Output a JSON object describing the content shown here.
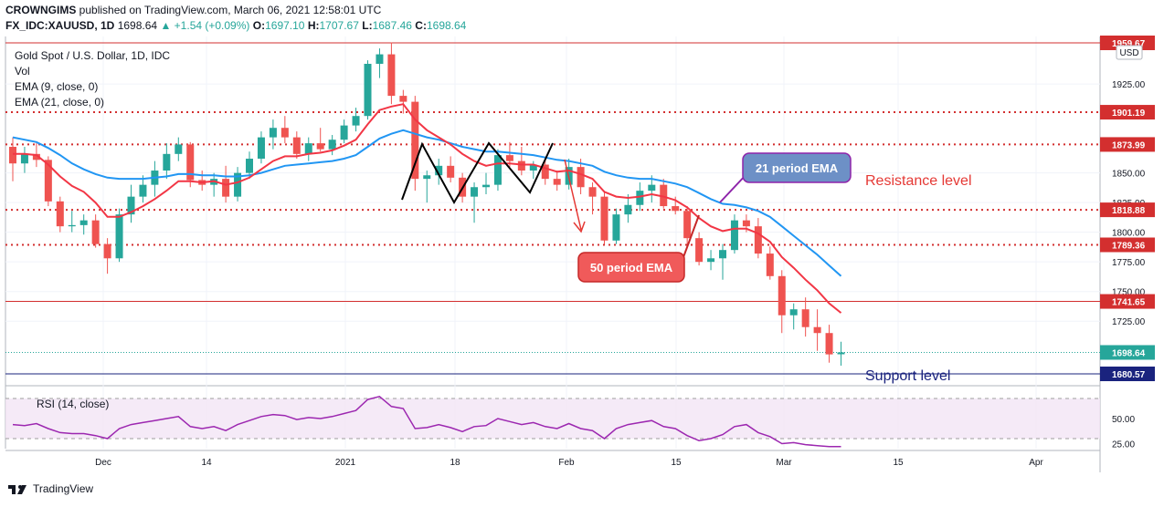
{
  "header": {
    "publisher": "CROWNGIMS",
    "published_text": "published on TradingView.com, March 06, 2021 12:58:01 UTC",
    "symbol": "FX_IDC:XAUUSD, 1D",
    "last": "1698.64",
    "change": "+1.54 (+0.09%)",
    "o_label": "O:",
    "o": "1697.10",
    "h_label": "H:",
    "h": "1707.67",
    "l_label": "L:",
    "l": "1687.46",
    "c_label": "C:",
    "c": "1698.64"
  },
  "legend": {
    "title": "Gold Spot / U.S. Dollar, 1D, IDC",
    "vol": "Vol",
    "ema9": "EMA (9, close, 0)",
    "ema21": "EMA (21, close, 0)"
  },
  "currency": "USD",
  "rsi_label": "RSI (14, close)",
  "footer": {
    "brand": "TradingView"
  },
  "colors": {
    "up": "#26a69a",
    "down": "#ef5350",
    "ema_fast": "#f23645",
    "ema_slow": "#2196f3",
    "rsi": "#9c27b0",
    "resistance": "#d32f2f",
    "support": "#1a237e"
  },
  "chart_data": {
    "type": "candlestick",
    "ylim": [
      1665,
      1965
    ],
    "price_ticks": [
      "1925.00",
      "1850.00",
      "1825.00",
      "1800.00",
      "1775.00",
      "1750.00",
      "1725.00"
    ],
    "x_tick_labels": [
      "Dec",
      "14",
      "2021",
      "18",
      "Feb",
      "15",
      "Mar",
      "15",
      "Apr"
    ],
    "levels": [
      {
        "value": 1959.67,
        "label": "1959.67",
        "style": "solid",
        "color": "#d32f2f"
      },
      {
        "value": 1901.19,
        "label": "1901.19",
        "style": "dotted",
        "color": "#d32f2f"
      },
      {
        "value": 1873.99,
        "label": "1873.99",
        "style": "dotted",
        "color": "#d32f2f"
      },
      {
        "value": 1818.88,
        "label": "1818.88",
        "style": "dotted",
        "color": "#d32f2f"
      },
      {
        "value": 1789.36,
        "label": "1789.36",
        "style": "dotted",
        "color": "#d32f2f"
      },
      {
        "value": 1741.65,
        "label": "1741.65",
        "style": "solid",
        "color": "#d32f2f"
      },
      {
        "value": 1680.57,
        "label": "1680.57",
        "style": "solid",
        "color": "#1a237e"
      }
    ],
    "last_price": {
      "value": 1698.64,
      "label": "1698.64",
      "color": "#26a69a"
    },
    "candles": [
      {
        "o": 1872,
        "h": 1880,
        "l": 1843,
        "c": 1858
      },
      {
        "o": 1858,
        "h": 1872,
        "l": 1850,
        "c": 1866
      },
      {
        "o": 1866,
        "h": 1875,
        "l": 1855,
        "c": 1861
      },
      {
        "o": 1861,
        "h": 1864,
        "l": 1822,
        "c": 1826
      },
      {
        "o": 1826,
        "h": 1830,
        "l": 1800,
        "c": 1805
      },
      {
        "o": 1805,
        "h": 1818,
        "l": 1800,
        "c": 1806
      },
      {
        "o": 1806,
        "h": 1815,
        "l": 1798,
        "c": 1810
      },
      {
        "o": 1810,
        "h": 1815,
        "l": 1787,
        "c": 1790
      },
      {
        "o": 1790,
        "h": 1795,
        "l": 1765,
        "c": 1778
      },
      {
        "o": 1778,
        "h": 1820,
        "l": 1775,
        "c": 1815
      },
      {
        "o": 1815,
        "h": 1840,
        "l": 1808,
        "c": 1830
      },
      {
        "o": 1830,
        "h": 1848,
        "l": 1825,
        "c": 1840
      },
      {
        "o": 1840,
        "h": 1860,
        "l": 1830,
        "c": 1852
      },
      {
        "o": 1852,
        "h": 1875,
        "l": 1845,
        "c": 1866
      },
      {
        "o": 1866,
        "h": 1880,
        "l": 1860,
        "c": 1874
      },
      {
        "o": 1874,
        "h": 1876,
        "l": 1838,
        "c": 1844
      },
      {
        "o": 1844,
        "h": 1852,
        "l": 1835,
        "c": 1840
      },
      {
        "o": 1840,
        "h": 1850,
        "l": 1830,
        "c": 1845
      },
      {
        "o": 1845,
        "h": 1856,
        "l": 1825,
        "c": 1830
      },
      {
        "o": 1830,
        "h": 1855,
        "l": 1826,
        "c": 1850
      },
      {
        "o": 1850,
        "h": 1868,
        "l": 1845,
        "c": 1862
      },
      {
        "o": 1862,
        "h": 1885,
        "l": 1858,
        "c": 1880
      },
      {
        "o": 1880,
        "h": 1895,
        "l": 1870,
        "c": 1888
      },
      {
        "o": 1888,
        "h": 1898,
        "l": 1875,
        "c": 1880
      },
      {
        "o": 1880,
        "h": 1885,
        "l": 1862,
        "c": 1866
      },
      {
        "o": 1866,
        "h": 1880,
        "l": 1860,
        "c": 1875
      },
      {
        "o": 1875,
        "h": 1888,
        "l": 1868,
        "c": 1870
      },
      {
        "o": 1870,
        "h": 1882,
        "l": 1865,
        "c": 1878
      },
      {
        "o": 1878,
        "h": 1895,
        "l": 1875,
        "c": 1890
      },
      {
        "o": 1890,
        "h": 1905,
        "l": 1885,
        "c": 1898
      },
      {
        "o": 1898,
        "h": 1945,
        "l": 1895,
        "c": 1942
      },
      {
        "o": 1942,
        "h": 1955,
        "l": 1930,
        "c": 1950
      },
      {
        "o": 1950,
        "h": 1960,
        "l": 1908,
        "c": 1915
      },
      {
        "o": 1915,
        "h": 1920,
        "l": 1900,
        "c": 1910
      },
      {
        "o": 1910,
        "h": 1915,
        "l": 1835,
        "c": 1845
      },
      {
        "o": 1845,
        "h": 1852,
        "l": 1825,
        "c": 1848
      },
      {
        "o": 1848,
        "h": 1862,
        "l": 1840,
        "c": 1856
      },
      {
        "o": 1856,
        "h": 1864,
        "l": 1842,
        "c": 1846
      },
      {
        "o": 1846,
        "h": 1850,
        "l": 1825,
        "c": 1830
      },
      {
        "o": 1830,
        "h": 1842,
        "l": 1808,
        "c": 1838
      },
      {
        "o": 1838,
        "h": 1850,
        "l": 1832,
        "c": 1840
      },
      {
        "o": 1840,
        "h": 1870,
        "l": 1835,
        "c": 1865
      },
      {
        "o": 1865,
        "h": 1876,
        "l": 1855,
        "c": 1860
      },
      {
        "o": 1860,
        "h": 1872,
        "l": 1848,
        "c": 1852
      },
      {
        "o": 1852,
        "h": 1860,
        "l": 1845,
        "c": 1857
      },
      {
        "o": 1857,
        "h": 1862,
        "l": 1840,
        "c": 1845
      },
      {
        "o": 1845,
        "h": 1852,
        "l": 1835,
        "c": 1840
      },
      {
        "o": 1840,
        "h": 1862,
        "l": 1836,
        "c": 1855
      },
      {
        "o": 1855,
        "h": 1862,
        "l": 1832,
        "c": 1838
      },
      {
        "o": 1838,
        "h": 1842,
        "l": 1815,
        "c": 1830
      },
      {
        "o": 1830,
        "h": 1835,
        "l": 1790,
        "c": 1793
      },
      {
        "o": 1793,
        "h": 1820,
        "l": 1790,
        "c": 1815
      },
      {
        "o": 1815,
        "h": 1832,
        "l": 1808,
        "c": 1823
      },
      {
        "o": 1823,
        "h": 1842,
        "l": 1818,
        "c": 1835
      },
      {
        "o": 1835,
        "h": 1848,
        "l": 1825,
        "c": 1840
      },
      {
        "o": 1840,
        "h": 1845,
        "l": 1820,
        "c": 1822
      },
      {
        "o": 1822,
        "h": 1830,
        "l": 1815,
        "c": 1818
      },
      {
        "o": 1818,
        "h": 1822,
        "l": 1790,
        "c": 1795
      },
      {
        "o": 1795,
        "h": 1800,
        "l": 1772,
        "c": 1775
      },
      {
        "o": 1775,
        "h": 1785,
        "l": 1768,
        "c": 1778
      },
      {
        "o": 1778,
        "h": 1790,
        "l": 1760,
        "c": 1785
      },
      {
        "o": 1785,
        "h": 1815,
        "l": 1782,
        "c": 1810
      },
      {
        "o": 1810,
        "h": 1815,
        "l": 1800,
        "c": 1805
      },
      {
        "o": 1805,
        "h": 1812,
        "l": 1778,
        "c": 1782
      },
      {
        "o": 1782,
        "h": 1788,
        "l": 1760,
        "c": 1763
      },
      {
        "o": 1763,
        "h": 1768,
        "l": 1715,
        "c": 1730
      },
      {
        "o": 1730,
        "h": 1740,
        "l": 1718,
        "c": 1735
      },
      {
        "o": 1735,
        "h": 1745,
        "l": 1712,
        "c": 1720
      },
      {
        "o": 1720,
        "h": 1735,
        "l": 1700,
        "c": 1715
      },
      {
        "o": 1715,
        "h": 1722,
        "l": 1690,
        "c": 1697
      },
      {
        "o": 1697.1,
        "h": 1707.67,
        "l": 1687.46,
        "c": 1698.64
      }
    ],
    "ema_fast": [
      1866,
      1866,
      1865,
      1857,
      1847,
      1839,
      1834,
      1825,
      1813,
      1813,
      1817,
      1822,
      1828,
      1835,
      1843,
      1843,
      1842,
      1843,
      1840,
      1842,
      1846,
      1853,
      1860,
      1864,
      1864,
      1866,
      1867,
      1869,
      1873,
      1878,
      1891,
      1903,
      1906,
      1908,
      1895,
      1886,
      1880,
      1874,
      1866,
      1860,
      1856,
      1858,
      1858,
      1857,
      1857,
      1854,
      1851,
      1852,
      1849,
      1845,
      1834,
      1830,
      1829,
      1830,
      1832,
      1830,
      1827,
      1821,
      1812,
      1805,
      1801,
      1803,
      1803,
      1799,
      1792,
      1779,
      1770,
      1760,
      1751,
      1740,
      1732
    ],
    "ema_slow": [
      1880,
      1878,
      1876,
      1871,
      1865,
      1858,
      1853,
      1849,
      1846,
      1845,
      1845,
      1845,
      1846,
      1847,
      1849,
      1849,
      1848,
      1848,
      1847,
      1847,
      1848,
      1850,
      1853,
      1856,
      1857,
      1858,
      1859,
      1860,
      1862,
      1865,
      1872,
      1879,
      1883,
      1886,
      1883,
      1880,
      1878,
      1875,
      1872,
      1870,
      1868,
      1868,
      1867,
      1866,
      1865,
      1863,
      1861,
      1860,
      1858,
      1856,
      1851,
      1848,
      1846,
      1845,
      1845,
      1843,
      1841,
      1838,
      1833,
      1828,
      1824,
      1823,
      1821,
      1818,
      1813,
      1805,
      1797,
      1789,
      1781,
      1772,
      1763
    ],
    "annotations": [
      {
        "text": "21 period EMA",
        "fill": "#6d90c6",
        "border": "#8e24aa"
      },
      {
        "text": "50 period EMA",
        "fill": "#f05a5a",
        "border": "#c62828"
      },
      {
        "text": "Resistance level",
        "color": "#e53935"
      },
      {
        "text": "Support level",
        "color": "#1a237e"
      }
    ],
    "rsi": {
      "label": "RSI (14, close)",
      "ylim": [
        20,
        80
      ],
      "ticks": [
        "50.00",
        "25.00"
      ],
      "bands": [
        70,
        30
      ],
      "values": [
        44,
        43,
        45,
        40,
        36,
        35,
        35,
        33,
        30,
        40,
        44,
        46,
        48,
        50,
        52,
        42,
        40,
        42,
        38,
        44,
        48,
        52,
        54,
        53,
        49,
        51,
        50,
        52,
        55,
        58,
        69,
        72,
        62,
        60,
        40,
        41,
        44,
        41,
        37,
        42,
        43,
        50,
        47,
        44,
        46,
        42,
        40,
        45,
        40,
        38,
        30,
        40,
        44,
        46,
        48,
        42,
        40,
        33,
        28,
        30,
        34,
        42,
        44,
        36,
        32,
        25,
        26,
        24,
        23,
        22,
        22
      ]
    }
  }
}
